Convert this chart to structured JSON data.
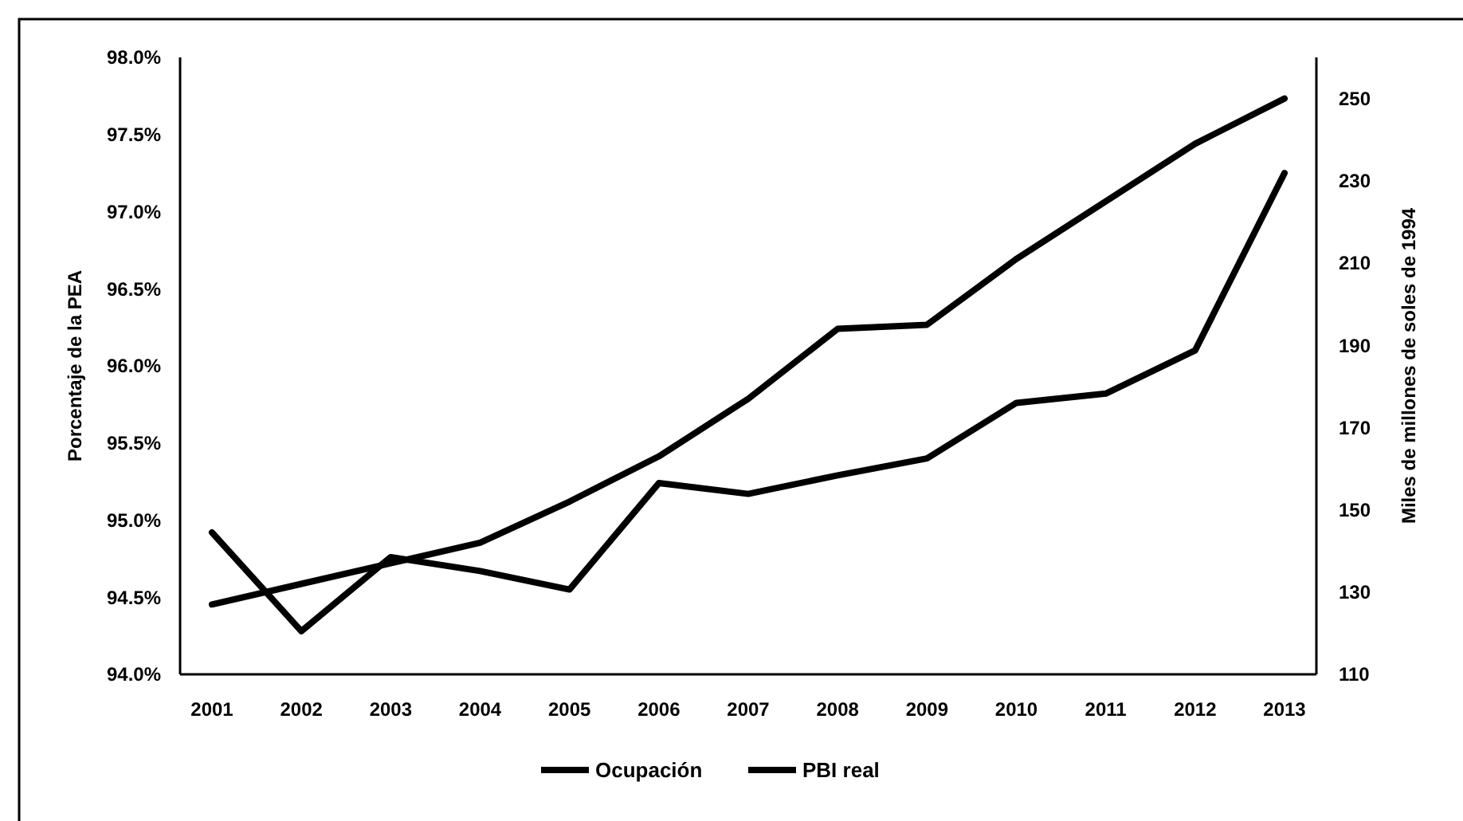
{
  "chart_data": {
    "type": "line",
    "ylabel": "Porcentaje de la PEA",
    "y2label": "Miles de millones de soles de 1994",
    "categories": [
      "2001",
      "2002",
      "2003",
      "2004",
      "2005",
      "2006",
      "2007",
      "2008",
      "2009",
      "2010",
      "2011",
      "2012",
      "2013"
    ],
    "series": [
      {
        "name": "Ocupación",
        "color": "#000000",
        "values": [
          94.92,
          94.28,
          94.76,
          94.67,
          94.55,
          95.24,
          95.17,
          95.29,
          95.4,
          95.76,
          95.82,
          96.1,
          97.25
        ]
      },
      {
        "name": "PBI real",
        "color": "#000000",
        "axis": "y2",
        "values": [
          127,
          132,
          137,
          142,
          152,
          163,
          177,
          194,
          195,
          211,
          225,
          239,
          250
        ]
      }
    ],
    "ylim": [
      94,
      98
    ],
    "yticks": [
      {
        "value": 94,
        "label": "94.0%"
      },
      {
        "value": 94.5,
        "label": "94.5%"
      },
      {
        "value": 95,
        "label": "95.0%"
      },
      {
        "value": 95.5,
        "label": "95.5%"
      },
      {
        "value": 96,
        "label": "96.0%"
      },
      {
        "value": 96.5,
        "label": "96.5%"
      },
      {
        "value": 97,
        "label": "97.0%"
      },
      {
        "value": 97.5,
        "label": "97.5%"
      },
      {
        "value": 98,
        "label": "98.0%"
      }
    ],
    "y2lim": [
      110,
      260
    ],
    "y2ticks": [
      110,
      130,
      150,
      170,
      190,
      210,
      230,
      250
    ],
    "legend": "bottom",
    "grid": false,
    "marker": "none",
    "line_style": "solid"
  }
}
